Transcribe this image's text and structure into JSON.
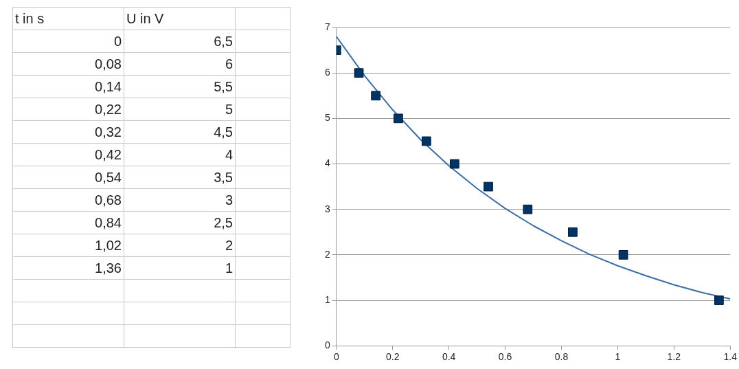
{
  "chart_data": {
    "type": "scatter",
    "xlim": [
      0,
      1.4
    ],
    "xticks": [
      0,
      0.2,
      0.4,
      0.6,
      0.8,
      1,
      1.2,
      1.4
    ],
    "ylim": [
      0,
      7
    ],
    "yticks": [
      0,
      1,
      2,
      3,
      4,
      5,
      6,
      7
    ],
    "grid": "y",
    "annotations": [
      "t in s",
      "U in V",
      "0",
      "6,5",
      "0,08",
      "6",
      "0,14",
      "5,5",
      "0,22",
      "5",
      "0,32",
      "4,5",
      "0,42",
      "4",
      "0,54",
      "3,5",
      "0,68",
      "3",
      "0,84",
      "2,5",
      "1,02",
      "2",
      "1,36",
      "1"
    ],
    "series": [
      {
        "type": "scatter",
        "color": "#003366",
        "marker": "square",
        "x": [
          0,
          0.08,
          0.14,
          0.22,
          0.32,
          0.42,
          0.54,
          0.68,
          0.84,
          1.02,
          1.36
        ],
        "values": [
          6.5,
          6,
          5.5,
          5,
          4.5,
          4,
          3.5,
          3,
          2.5,
          2,
          1
        ]
      },
      {
        "type": "line",
        "color": "#3a6ea5",
        "marker": "none",
        "x": [
          0,
          0.1,
          0.2,
          0.3,
          0.4,
          0.5,
          0.6,
          0.7,
          0.8,
          0.9,
          1,
          1.1,
          1.2,
          1.3,
          1.4
        ],
        "values": [
          6.8,
          5.94,
          5.19,
          4.53,
          3.96,
          3.46,
          3.02,
          2.64,
          2.31,
          2.01,
          1.76,
          1.54,
          1.34,
          1.17,
          1.03
        ]
      }
    ]
  }
}
